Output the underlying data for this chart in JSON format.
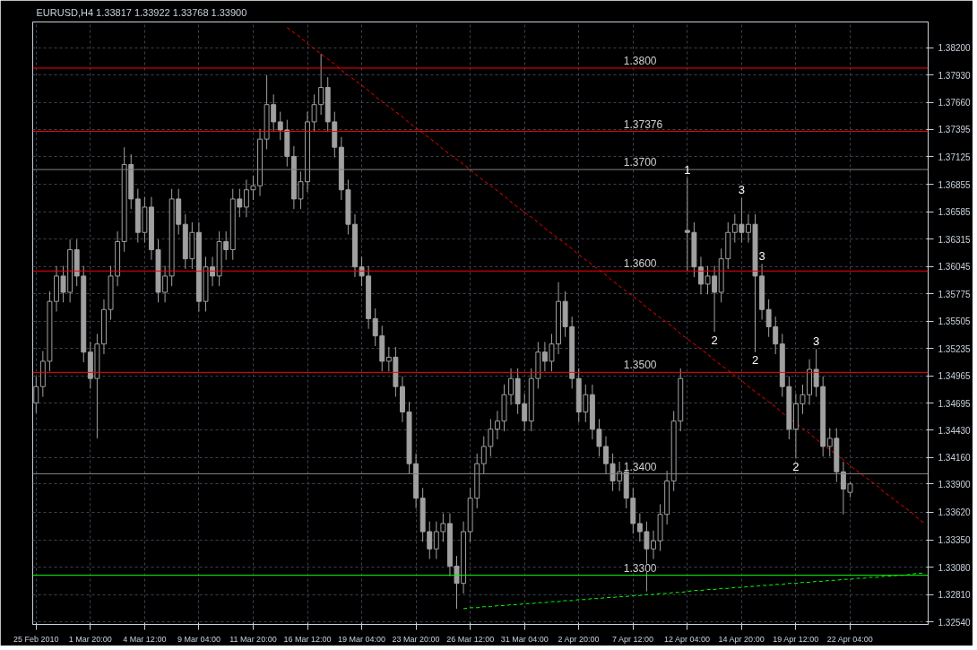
{
  "chart_data": {
    "type": "candlestick",
    "title": "EURUSD,H4  1.33817 1.33922 1.33768 1.33900",
    "ylim": [
      1.32515,
      1.38455
    ],
    "categories": [
      "25 Feb 2010",
      null,
      null,
      null,
      null,
      null,
      null,
      null,
      "1 Mar 20:00",
      null,
      null,
      null,
      null,
      null,
      null,
      null,
      "4 Mar 12:00",
      null,
      null,
      null,
      null,
      null,
      null,
      null,
      "9 Mar 04:00",
      null,
      null,
      null,
      null,
      null,
      null,
      null,
      "11 Mar 20:00",
      null,
      null,
      null,
      null,
      null,
      null,
      null,
      "16 Mar 12:00",
      null,
      null,
      null,
      null,
      null,
      null,
      null,
      "19 Mar 04:00",
      null,
      null,
      null,
      null,
      null,
      null,
      null,
      "23 Mar 20:00",
      null,
      null,
      null,
      null,
      null,
      null,
      null,
      "26 Mar 12:00",
      null,
      null,
      null,
      null,
      null,
      null,
      null,
      "31 Mar 04:00",
      null,
      null,
      null,
      null,
      null,
      null,
      null,
      "2 Apr 20:00",
      null,
      null,
      null,
      null,
      null,
      null,
      null,
      "7 Apr 12:00",
      null,
      null,
      null,
      null,
      null,
      null,
      null,
      "12 Apr 04:00",
      null,
      null,
      null,
      null,
      null,
      null,
      null,
      "14 Apr 20:00",
      null,
      null,
      null,
      null,
      null,
      null,
      null,
      "19 Apr 12:00",
      null,
      null,
      null,
      null,
      null,
      null,
      null,
      "22 Apr 04:00",
      null,
      null,
      null,
      null,
      null,
      null,
      null,
      null,
      null,
      null,
      null
    ],
    "yticks": [
      {
        "value": 1.3254,
        "label": "1.32540"
      },
      {
        "value": 1.3281,
        "label": "1.32810"
      },
      {
        "value": 1.3308,
        "label": "1.33080"
      },
      {
        "value": 1.3335,
        "label": "1.33350"
      },
      {
        "value": 1.3362,
        "label": "1.33620"
      },
      {
        "value": 1.339,
        "label": "1.33900"
      },
      {
        "value": 1.3416,
        "label": "1.34160"
      },
      {
        "value": 1.3443,
        "label": "1.34430"
      },
      {
        "value": 1.34695,
        "label": "1.34695"
      },
      {
        "value": 1.34965,
        "label": "1.34965"
      },
      {
        "value": 1.35235,
        "label": "1.35235"
      },
      {
        "value": 1.35505,
        "label": "1.35505"
      },
      {
        "value": 1.35775,
        "label": "1.35775"
      },
      {
        "value": 1.36045,
        "label": "1.36045"
      },
      {
        "value": 1.36315,
        "label": "1.36315"
      },
      {
        "value": 1.36585,
        "label": "1.36585"
      },
      {
        "value": 1.36855,
        "label": "1.36855"
      },
      {
        "value": 1.37125,
        "label": "1.37125"
      },
      {
        "value": 1.37395,
        "label": "1.37395"
      },
      {
        "value": 1.3766,
        "label": "1.37660"
      },
      {
        "value": 1.3793,
        "label": "1.37930"
      },
      {
        "value": 1.382,
        "label": "1.38200"
      }
    ],
    "grid": true,
    "ref_lines": [
      {
        "axis": "y",
        "value": 1.38,
        "label": "1.3800",
        "color": "#ff0000"
      },
      {
        "axis": "y",
        "value": 1.37376,
        "label": "1.37376",
        "color": "#ff0000"
      },
      {
        "axis": "y",
        "value": 1.37,
        "label": "1.3700",
        "color": "#808080"
      },
      {
        "axis": "y",
        "value": 1.36,
        "label": "1.3600",
        "color": "#ff0000"
      },
      {
        "axis": "y",
        "value": 1.35,
        "label": "1.3500",
        "color": "#ff0000"
      },
      {
        "axis": "y",
        "value": 1.34,
        "label": "1.3400",
        "color": "#808080"
      },
      {
        "axis": "y",
        "value": 1.33,
        "label": "1.3300",
        "color": "#00ff00"
      }
    ],
    "annotations": [
      {
        "text": "1",
        "y": 1.3692
      },
      {
        "text": "3",
        "y": 1.3672
      },
      {
        "text": "2",
        "y": 1.354
      },
      {
        "text": "3",
        "y": 1.3607
      },
      {
        "text": "2",
        "y": 1.352
      },
      {
        "text": "3",
        "y": 1.3523
      },
      {
        "text": "2",
        "y": 1.3415
      }
    ],
    "series": [
      {
        "type": "line",
        "color": "#ff0000",
        "line_style": "dashed",
        "values": [
          null,
          null,
          null,
          null,
          null,
          null,
          null,
          null,
          null,
          null,
          null,
          null,
          null,
          null,
          null,
          null,
          null,
          null,
          null,
          null,
          null,
          null,
          null,
          null,
          null,
          null,
          null,
          null,
          null,
          null,
          null,
          null,
          null,
          null,
          null,
          null,
          null,
          1.384,
          1.3835,
          1.383,
          1.3824,
          1.3819,
          1.3814,
          1.3809,
          1.3804,
          1.3798,
          1.3793,
          1.3788,
          1.3783,
          1.3778,
          1.3772,
          1.3767,
          1.3762,
          1.3757,
          1.3752,
          1.3746,
          1.3741,
          1.3736,
          1.3731,
          1.3726,
          1.372,
          1.3715,
          1.371,
          1.3705,
          1.37,
          1.3694,
          1.3689,
          1.3684,
          1.3679,
          1.3674,
          1.3668,
          1.3663,
          1.3658,
          1.3653,
          1.3648,
          1.3642,
          1.3637,
          1.3632,
          1.3627,
          1.3622,
          1.3616,
          1.3611,
          1.3606,
          1.3601,
          1.3596,
          1.359,
          1.3585,
          1.358,
          1.3575,
          1.357,
          1.3564,
          1.3559,
          1.3554,
          1.3549,
          1.3544,
          1.3538,
          1.3533,
          1.3528,
          1.3523,
          1.3518,
          1.3512,
          1.3507,
          1.3502,
          1.3497,
          1.3492,
          1.3486,
          1.3481,
          1.3476,
          1.3471,
          1.3466,
          1.346,
          1.3455,
          1.345,
          1.3445,
          1.344,
          1.3434,
          1.3429,
          1.3424,
          1.3419,
          1.3414,
          1.3408,
          1.3403,
          1.3398,
          1.3393,
          1.3388,
          1.3382,
          1.3377,
          1.3372,
          1.3367,
          1.3362,
          1.3356,
          1.3351
        ]
      },
      {
        "type": "line",
        "color": "#00ff00",
        "line_style": "dashed",
        "values": [
          null,
          null,
          null,
          null,
          null,
          null,
          null,
          null,
          null,
          null,
          null,
          null,
          null,
          null,
          null,
          null,
          null,
          null,
          null,
          null,
          null,
          null,
          null,
          null,
          null,
          null,
          null,
          null,
          null,
          null,
          null,
          null,
          null,
          null,
          null,
          null,
          null,
          null,
          null,
          null,
          null,
          null,
          null,
          null,
          null,
          null,
          null,
          null,
          null,
          null,
          null,
          null,
          null,
          null,
          null,
          null,
          null,
          null,
          null,
          null,
          null,
          null,
          null,
          1.3267,
          1.3268,
          1.3268,
          1.3269,
          1.3269,
          1.327,
          1.327,
          1.3271,
          1.3271,
          1.3272,
          1.3272,
          1.3273,
          1.3273,
          1.3274,
          1.3274,
          1.3275,
          1.3275,
          1.3276,
          1.3276,
          1.3277,
          1.3277,
          1.3278,
          1.3278,
          1.3279,
          1.3279,
          1.328,
          1.328,
          1.3281,
          1.3281,
          1.3282,
          1.3282,
          1.3283,
          1.3283,
          1.3284,
          1.3285,
          1.3285,
          1.3286,
          1.3286,
          1.3287,
          1.3287,
          1.3288,
          1.3288,
          1.3289,
          1.3289,
          1.329,
          1.329,
          1.3291,
          1.3291,
          1.3292,
          1.3292,
          1.3293,
          1.3293,
          1.3294,
          1.3294,
          1.3295,
          1.3295,
          1.3296,
          1.3296,
          1.3297,
          1.3297,
          1.3298,
          1.3298,
          1.3299,
          1.3299,
          1.33,
          1.33,
          1.3301,
          1.3302,
          1.3302
        ]
      },
      {
        "color": "#a0a0a0",
        "ohlc": [
          [
            1.347,
            1.3496,
            1.346,
            1.3486
          ],
          [
            1.3486,
            1.3521,
            1.3476,
            1.3511
          ],
          [
            1.3511,
            1.358,
            1.3501,
            1.357
          ],
          [
            1.357,
            1.3605,
            1.356,
            1.3595
          ],
          [
            1.3595,
            1.3605,
            1.3569,
            1.3579
          ],
          [
            1.3579,
            1.3631,
            1.3569,
            1.3621
          ],
          [
            1.3621,
            1.3631,
            1.3585,
            1.3595
          ],
          [
            1.3595,
            1.3605,
            1.351,
            1.352
          ],
          [
            1.352,
            1.353,
            1.3484,
            1.3494
          ],
          [
            1.3494,
            1.3538,
            1.3435,
            1.3528
          ],
          [
            1.3528,
            1.3572,
            1.3518,
            1.3562
          ],
          [
            1.3562,
            1.3605,
            1.3552,
            1.3595
          ],
          [
            1.3595,
            1.3639,
            1.3585,
            1.3629
          ],
          [
            1.3629,
            1.3722,
            1.3619,
            1.3705
          ],
          [
            1.3705,
            1.3715,
            1.3661,
            1.3671
          ],
          [
            1.3671,
            1.3681,
            1.3628,
            1.3638
          ],
          [
            1.3638,
            1.3673,
            1.3628,
            1.3663
          ],
          [
            1.3663,
            1.3673,
            1.3611,
            1.3621
          ],
          [
            1.3621,
            1.3631,
            1.3569,
            1.3579
          ],
          [
            1.3579,
            1.3605,
            1.3569,
            1.3595
          ],
          [
            1.3595,
            1.3681,
            1.3585,
            1.3671
          ],
          [
            1.3671,
            1.3681,
            1.3636,
            1.3646
          ],
          [
            1.3646,
            1.3656,
            1.3602,
            1.3612
          ],
          [
            1.3612,
            1.3648,
            1.3602,
            1.3638
          ],
          [
            1.3638,
            1.3648,
            1.356,
            1.357
          ],
          [
            1.357,
            1.3614,
            1.356,
            1.3604
          ],
          [
            1.3604,
            1.3614,
            1.3585,
            1.3595
          ],
          [
            1.3595,
            1.3639,
            1.3585,
            1.3629
          ],
          [
            1.3629,
            1.3639,
            1.3611,
            1.3621
          ],
          [
            1.3621,
            1.3681,
            1.3611,
            1.3671
          ],
          [
            1.3671,
            1.3681,
            1.3653,
            1.3663
          ],
          [
            1.3663,
            1.369,
            1.3653,
            1.368
          ],
          [
            1.368,
            1.3694,
            1.367,
            1.3684
          ],
          [
            1.3684,
            1.374,
            1.3674,
            1.373
          ],
          [
            1.373,
            1.3793,
            1.372,
            1.3764
          ],
          [
            1.3764,
            1.3774,
            1.3737,
            1.3747
          ],
          [
            1.3747,
            1.3757,
            1.3729,
            1.3739
          ],
          [
            1.3739,
            1.3749,
            1.3703,
            1.3713
          ],
          [
            1.3713,
            1.3723,
            1.3661,
            1.3671
          ],
          [
            1.3671,
            1.3698,
            1.3661,
            1.3688
          ],
          [
            1.3688,
            1.3757,
            1.3678,
            1.3747
          ],
          [
            1.3747,
            1.3774,
            1.3737,
            1.3764
          ],
          [
            1.3764,
            1.3814,
            1.3754,
            1.3781
          ],
          [
            1.3781,
            1.3791,
            1.3737,
            1.3747
          ],
          [
            1.3747,
            1.3757,
            1.3712,
            1.3722
          ],
          [
            1.3722,
            1.3732,
            1.367,
            1.368
          ],
          [
            1.368,
            1.369,
            1.3636,
            1.3646
          ],
          [
            1.3646,
            1.3656,
            1.3594,
            1.3604
          ],
          [
            1.3604,
            1.3614,
            1.3585,
            1.3595
          ],
          [
            1.3595,
            1.3605,
            1.3543,
            1.3553
          ],
          [
            1.3553,
            1.3563,
            1.3526,
            1.3536
          ],
          [
            1.3536,
            1.3546,
            1.3501,
            1.3511
          ],
          [
            1.3511,
            1.3525,
            1.3501,
            1.3515
          ],
          [
            1.3515,
            1.3525,
            1.3476,
            1.3486
          ],
          [
            1.3486,
            1.3496,
            1.3451,
            1.3461
          ],
          [
            1.3461,
            1.3471,
            1.34,
            1.341
          ],
          [
            1.341,
            1.342,
            1.3366,
            1.3376
          ],
          [
            1.3376,
            1.3386,
            1.3333,
            1.3343
          ],
          [
            1.3343,
            1.3353,
            1.3316,
            1.3326
          ],
          [
            1.3326,
            1.3353,
            1.3316,
            1.3343
          ],
          [
            1.3343,
            1.3361,
            1.3333,
            1.3351
          ],
          [
            1.3351,
            1.3361,
            1.3299,
            1.3309
          ],
          [
            1.3309,
            1.3319,
            1.3267,
            1.3292
          ],
          [
            1.3292,
            1.3353,
            1.3282,
            1.3343
          ],
          [
            1.3343,
            1.3386,
            1.3333,
            1.3376
          ],
          [
            1.3376,
            1.342,
            1.3366,
            1.341
          ],
          [
            1.341,
            1.3437,
            1.34,
            1.3427
          ],
          [
            1.3427,
            1.3454,
            1.3417,
            1.3444
          ],
          [
            1.3444,
            1.3462,
            1.3434,
            1.3452
          ],
          [
            1.3452,
            1.3488,
            1.3442,
            1.3478
          ],
          [
            1.3478,
            1.3504,
            1.3468,
            1.3494
          ],
          [
            1.3494,
            1.3504,
            1.3459,
            1.3469
          ],
          [
            1.3469,
            1.3479,
            1.3442,
            1.3452
          ],
          [
            1.3452,
            1.3504,
            1.3442,
            1.3494
          ],
          [
            1.3494,
            1.353,
            1.3484,
            1.352
          ],
          [
            1.352,
            1.353,
            1.3501,
            1.3511
          ],
          [
            1.3511,
            1.3538,
            1.3501,
            1.3528
          ],
          [
            1.3528,
            1.3589,
            1.3518,
            1.357
          ],
          [
            1.357,
            1.358,
            1.3535,
            1.3545
          ],
          [
            1.3545,
            1.3555,
            1.3484,
            1.3494
          ],
          [
            1.3494,
            1.3504,
            1.3451,
            1.3461
          ],
          [
            1.3461,
            1.3488,
            1.3451,
            1.3478
          ],
          [
            1.3478,
            1.3488,
            1.3434,
            1.3444
          ],
          [
            1.3444,
            1.3454,
            1.3417,
            1.3427
          ],
          [
            1.3427,
            1.3437,
            1.34,
            1.341
          ],
          [
            1.341,
            1.342,
            1.3383,
            1.3393
          ],
          [
            1.3393,
            1.3412,
            1.3383,
            1.3402
          ],
          [
            1.3402,
            1.3412,
            1.3366,
            1.3376
          ],
          [
            1.3376,
            1.3386,
            1.3341,
            1.3351
          ],
          [
            1.3351,
            1.3361,
            1.3333,
            1.3343
          ],
          [
            1.3343,
            1.3353,
            1.3284,
            1.3326
          ],
          [
            1.3326,
            1.3344,
            1.3316,
            1.3334
          ],
          [
            1.3334,
            1.337,
            1.3324,
            1.336
          ],
          [
            1.336,
            1.3403,
            1.335,
            1.3393
          ],
          [
            1.3393,
            1.3462,
            1.3383,
            1.3452
          ],
          [
            1.3452,
            1.3504,
            1.3442,
            1.3494
          ],
          [
            1.364,
            1.3692,
            1.36,
            1.3638
          ],
          [
            1.3638,
            1.3648,
            1.3594,
            1.3604
          ],
          [
            1.3604,
            1.3614,
            1.3577,
            1.3587
          ],
          [
            1.3587,
            1.3605,
            1.3577,
            1.3595
          ],
          [
            1.3595,
            1.3605,
            1.354,
            1.3579
          ],
          [
            1.3579,
            1.3622,
            1.3569,
            1.3612
          ],
          [
            1.3612,
            1.3648,
            1.3602,
            1.3638
          ],
          [
            1.3638,
            1.3656,
            1.3628,
            1.3646
          ],
          [
            1.3646,
            1.3672,
            1.3628,
            1.3638
          ],
          [
            1.3638,
            1.3656,
            1.3628,
            1.3646
          ],
          [
            1.3646,
            1.3656,
            1.352,
            1.3595
          ],
          [
            1.3595,
            1.3607,
            1.3552,
            1.3562
          ],
          [
            1.3562,
            1.3572,
            1.3535,
            1.3545
          ],
          [
            1.3545,
            1.3555,
            1.3518,
            1.3528
          ],
          [
            1.3528,
            1.3538,
            1.3476,
            1.3486
          ],
          [
            1.3486,
            1.3496,
            1.3434,
            1.3444
          ],
          [
            1.3444,
            1.3479,
            1.3415,
            1.3469
          ],
          [
            1.3469,
            1.3488,
            1.3459,
            1.3478
          ],
          [
            1.3478,
            1.3513,
            1.3468,
            1.3503
          ],
          [
            1.3503,
            1.3523,
            1.3476,
            1.3486
          ],
          [
            1.3486,
            1.3496,
            1.3417,
            1.3427
          ],
          [
            1.3427,
            1.3445,
            1.3417,
            1.3435
          ],
          [
            1.3435,
            1.3445,
            1.3392,
            1.3402
          ],
          [
            1.3402,
            1.3412,
            1.336,
            1.3385
          ],
          [
            1.33817,
            1.33922,
            1.33768,
            1.339
          ],
          null,
          null,
          null,
          null,
          null,
          null,
          null,
          null,
          null,
          null,
          null
        ]
      }
    ]
  }
}
